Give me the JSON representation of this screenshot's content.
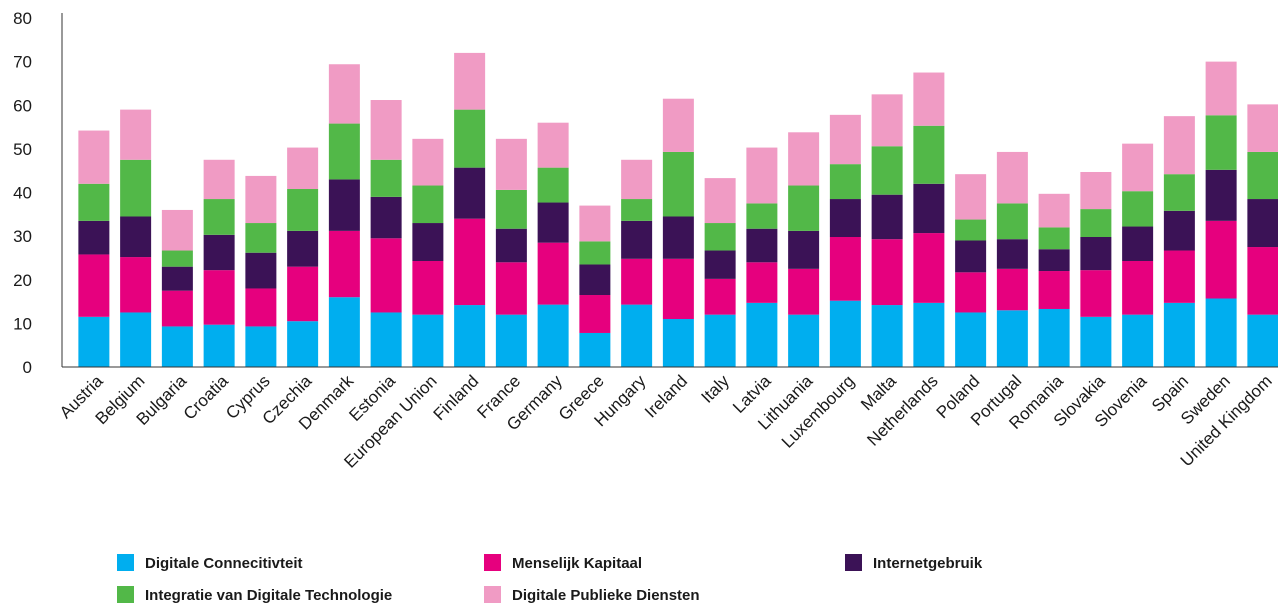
{
  "chart_data": {
    "type": "stacked_bar",
    "categories": [
      "Austria",
      "Belgium",
      "Bulgaria",
      "Croatia",
      "Cyprus",
      "Czechia",
      "Denmark",
      "Estonia",
      "European Union",
      "Finland",
      "France",
      "Germany",
      "Greece",
      "Hungary",
      "Ireland",
      "Italy",
      "Latvia",
      "Lithuania",
      "Luxembourg",
      "Malta",
      "Netherlands",
      "Poland",
      "Portugal",
      "Romania",
      "Slovakia",
      "Slovenia",
      "Spain",
      "Sweden",
      "United Kingdom"
    ],
    "series": [
      {
        "name": "Digitale Connecitivteit",
        "color": "#00aeef",
        "values": [
          11.5,
          12.5,
          9.3,
          9.7,
          9.3,
          10.5,
          16,
          12.5,
          12,
          14.2,
          12,
          14.3,
          7.8,
          14.3,
          11,
          12,
          14.7,
          12,
          15.2,
          14.2,
          14.7,
          12.5,
          13,
          13.3,
          11.5,
          12,
          14.7,
          15.7,
          12
        ]
      },
      {
        "name": "Menselijk Kapitaal",
        "color": "#e6007e",
        "values": [
          14.3,
          12.7,
          8.2,
          12.5,
          8.7,
          12.5,
          15.2,
          17,
          12.3,
          19.8,
          12,
          14.2,
          8.7,
          10.5,
          13.8,
          8.2,
          9.3,
          10.5,
          14.6,
          15.1,
          16,
          9.2,
          9.5,
          8.7,
          10.7,
          12.3,
          12,
          17.8,
          15.5
        ]
      },
      {
        "name": "Internetgebruik",
        "color": "#3b1256",
        "values": [
          7.7,
          9.3,
          5.5,
          8.1,
          8.2,
          8.2,
          11.8,
          9.5,
          8.7,
          11.7,
          7.7,
          9.2,
          7,
          8.7,
          9.7,
          6.5,
          7.7,
          8.7,
          8.7,
          10.2,
          11.3,
          7.3,
          6.8,
          5,
          7.6,
          7.9,
          9.1,
          11.7,
          11
        ]
      },
      {
        "name": "Integratie van Digitale Technologie",
        "color": "#52b848",
        "values": [
          8.5,
          13,
          3.7,
          8.2,
          6.8,
          9.6,
          12.8,
          8.5,
          8.6,
          13.3,
          8.9,
          8,
          5.3,
          5,
          14.8,
          6.3,
          5.8,
          10.4,
          8,
          11.1,
          13.3,
          4.8,
          8.2,
          5,
          6.4,
          8.1,
          8.4,
          12.5,
          10.8
        ]
      },
      {
        "name": "Digitale Publieke Diensten",
        "color": "#f09bc4",
        "values": [
          12.2,
          11.5,
          9.3,
          9,
          10.8,
          9.5,
          13.6,
          13.7,
          10.7,
          13,
          11.7,
          10.3,
          8.2,
          9,
          12.2,
          10.3,
          12.8,
          12.2,
          11.3,
          11.9,
          12.2,
          10.4,
          11.8,
          7.7,
          8.5,
          10.9,
          13.3,
          12.3,
          10.9
        ]
      }
    ],
    "ylim": [
      0,
      80
    ],
    "yticks": [
      0,
      10,
      20,
      30,
      40,
      50,
      60,
      70,
      80
    ],
    "grid": false
  }
}
